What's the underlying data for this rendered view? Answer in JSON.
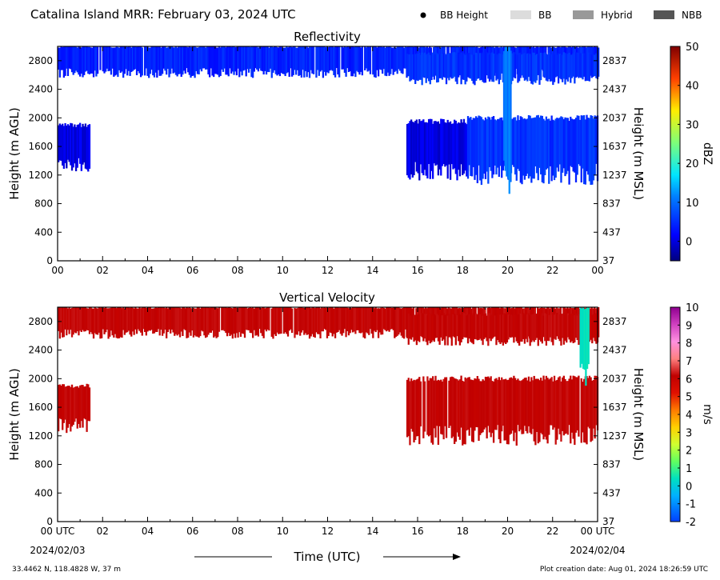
{
  "header": {
    "title": "Catalina Island MRR:  February 03, 2024 UTC",
    "legend": [
      {
        "label": "BB Height",
        "color": "#000000",
        "kind": "dot"
      },
      {
        "label": "BB",
        "color": "#dcdcdc",
        "kind": "box"
      },
      {
        "label": "Hybrid",
        "color": "#999999",
        "kind": "box"
      },
      {
        "label": "NBB",
        "color": "#555555",
        "kind": "box"
      }
    ]
  },
  "footer": {
    "location": "33.4462 N, 118.4828 W, 37 m",
    "creation": "Plot creation date: Aug 01, 2024 18:26:59 UTC",
    "xlabel": "Time (UTC)",
    "start_date": "2024/02/03",
    "end_date": "2024/02/04"
  },
  "chart_data": [
    {
      "type": "heatmap",
      "title": "Reflectivity",
      "ylabel": "Height (m AGL)",
      "ylabel_right": "Height (m MSL)",
      "xlim": [
        0,
        24
      ],
      "ylim": [
        0,
        3000
      ],
      "x_ticks": [
        "00",
        "02",
        "04",
        "06",
        "08",
        "10",
        "12",
        "14",
        "16",
        "18",
        "20",
        "22",
        "00"
      ],
      "y_ticks": [
        0,
        400,
        800,
        1200,
        1600,
        2000,
        2400,
        2800
      ],
      "y_ticks_right": [
        37,
        437,
        837,
        1237,
        1637,
        2037,
        2437,
        2837
      ],
      "colorbar": {
        "label": "dBZ",
        "min": -5,
        "max": 50,
        "ticks": [
          0,
          10,
          20,
          30,
          40,
          50
        ]
      },
      "regions": [
        {
          "x0": 0,
          "x1": 24,
          "y0": 2600,
          "y1": 3000,
          "value": 2
        },
        {
          "x0": 0,
          "x1": 1.4,
          "y0": 1300,
          "y1": 1900,
          "value": -1
        },
        {
          "x0": 15.5,
          "x1": 24,
          "y0": 2500,
          "y1": 2900,
          "value": 3
        },
        {
          "x0": 15.5,
          "x1": 18.2,
          "y0": 1200,
          "y1": 1950,
          "value": -1
        },
        {
          "x0": 18.2,
          "x1": 24,
          "y0": 1150,
          "y1": 2000,
          "value": 3
        },
        {
          "x0": 19.8,
          "x1": 20.1,
          "y0": 900,
          "y1": 3000,
          "value": 8
        }
      ]
    },
    {
      "type": "heatmap",
      "title": "Vertical Velocity",
      "ylabel": "Height (m AGL)",
      "ylabel_right": "Height (m MSL)",
      "xlim": [
        0,
        24
      ],
      "ylim": [
        0,
        3000
      ],
      "x_ticks": [
        "00 UTC",
        "02",
        "04",
        "06",
        "08",
        "10",
        "12",
        "14",
        "16",
        "18",
        "20",
        "22",
        "00 UTC"
      ],
      "y_ticks": [
        0,
        400,
        800,
        1200,
        1600,
        2000,
        2400,
        2800
      ],
      "y_ticks_right": [
        37,
        437,
        837,
        1237,
        1637,
        2037,
        2437,
        2837
      ],
      "colorbar": {
        "label": "m/s",
        "min": -2,
        "max": 10,
        "ticks": [
          -2,
          -1,
          0,
          1,
          2,
          3,
          4,
          5,
          6,
          7,
          8,
          9,
          10
        ]
      },
      "regions": [
        {
          "x0": 0,
          "x1": 24,
          "y0": 2600,
          "y1": 3000,
          "value": 6
        },
        {
          "x0": 0,
          "x1": 1.4,
          "y0": 1300,
          "y1": 1900,
          "value": 6
        },
        {
          "x0": 15.5,
          "x1": 24,
          "y0": 2500,
          "y1": 2900,
          "value": 6
        },
        {
          "x0": 15.5,
          "x1": 24,
          "y0": 1150,
          "y1": 2000,
          "value": 6
        },
        {
          "x0": 23.2,
          "x1": 23.6,
          "y0": 2000,
          "y1": 3000,
          "value": 0.5
        }
      ]
    }
  ]
}
